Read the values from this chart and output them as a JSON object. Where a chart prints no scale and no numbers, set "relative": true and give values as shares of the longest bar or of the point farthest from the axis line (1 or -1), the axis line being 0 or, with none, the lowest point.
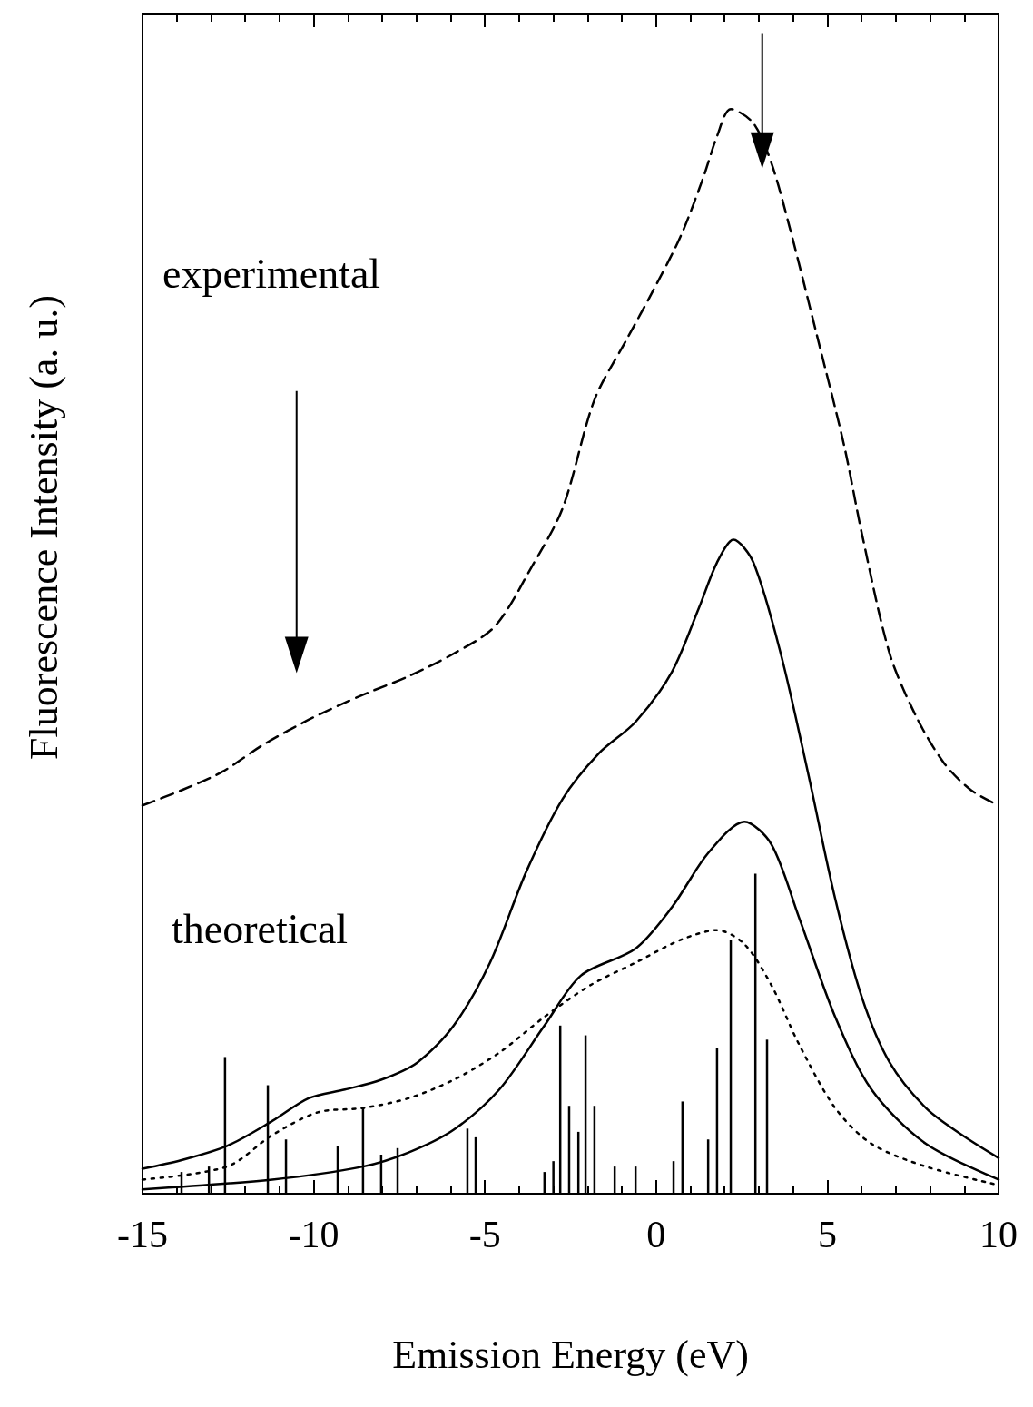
{
  "chart_data": {
    "type": "line",
    "xlabel": "Emission Energy (eV)",
    "ylabel": "Fluorescence Intensity (a. u.)",
    "relative": true,
    "xlim": [
      -15,
      10
    ],
    "xticks": [
      -15,
      -10,
      -5,
      0,
      5,
      10
    ],
    "grid": false,
    "marker": "none",
    "annotations": [
      "experimental",
      "theoretical"
    ],
    "series": [
      {
        "color": "#000000",
        "line_style": "dashed",
        "x": [
          -15,
          -13.86,
          -12.67,
          -11.47,
          -10.02,
          -8.56,
          -7.23,
          -5.91,
          -4.71,
          -3.65,
          -2.73,
          -1.8,
          -0.87,
          -0.08,
          0.72,
          1.38,
          1.78,
          2.18,
          2.84,
          3.37,
          3.9,
          4.7,
          5.49,
          6.02,
          6.82,
          7.61,
          8.41,
          9.2,
          10
        ],
        "values": [
          0.358,
          0.372,
          0.389,
          0.414,
          0.439,
          0.46,
          0.477,
          0.498,
          0.523,
          0.577,
          0.632,
          0.732,
          0.787,
          0.833,
          0.883,
          0.937,
          0.975,
          1.0,
          0.987,
          0.95,
          0.891,
          0.791,
          0.69,
          0.607,
          0.498,
          0.439,
          0.397,
          0.372,
          0.358
        ]
      },
      {
        "color": "#000000",
        "line_style": "solid",
        "x": [
          -15,
          -13.86,
          -12.53,
          -11.21,
          -10.15,
          -9.09,
          -8.03,
          -6.97,
          -5.91,
          -4.85,
          -3.79,
          -2.73,
          -1.67,
          -0.6,
          0.46,
          1.25,
          1.78,
          2.26,
          2.84,
          3.64,
          4.43,
          5.23,
          6.02,
          6.82,
          7.88,
          8.94,
          10
        ],
        "values": [
          0.023,
          0.031,
          0.044,
          0.067,
          0.088,
          0.096,
          0.105,
          0.121,
          0.155,
          0.213,
          0.297,
          0.364,
          0.406,
          0.435,
          0.481,
          0.54,
          0.582,
          0.603,
          0.582,
          0.498,
          0.389,
          0.272,
          0.18,
          0.121,
          0.079,
          0.054,
          0.033
        ]
      },
      {
        "color": "#000000",
        "line_style": "dotted",
        "x": [
          -15,
          -12.53,
          -11.21,
          -9.88,
          -8.56,
          -7.23,
          -5.91,
          -4.58,
          -3.26,
          -1.93,
          -0.6,
          0.72,
          1.78,
          2.58,
          3.37,
          4.17,
          5.23,
          6.29,
          7.88,
          10
        ],
        "values": [
          0.013,
          0.025,
          0.054,
          0.075,
          0.079,
          0.088,
          0.105,
          0.13,
          0.163,
          0.192,
          0.213,
          0.234,
          0.243,
          0.23,
          0.192,
          0.138,
          0.079,
          0.046,
          0.025,
          0.008
        ]
      },
      {
        "color": "#000000",
        "line_style": "solid",
        "x": [
          -15,
          -11.21,
          -8.56,
          -7.23,
          -5.91,
          -4.58,
          -3.26,
          -2.2,
          -0.6,
          0.46,
          1.52,
          2.58,
          3.37,
          4.17,
          5.23,
          6.29,
          7.88,
          10
        ],
        "values": [
          0.004,
          0.013,
          0.025,
          0.038,
          0.059,
          0.096,
          0.155,
          0.201,
          0.226,
          0.264,
          0.314,
          0.343,
          0.322,
          0.255,
          0.163,
          0.096,
          0.046,
          0.013
        ]
      },
      {
        "type": "bar",
        "color": "#000000",
        "x": [
          -13.86,
          -13.06,
          -12.59,
          -11.34,
          -10.81,
          -9.3,
          -8.56,
          -8.03,
          -7.55,
          -5.51,
          -5.27,
          -3.26,
          -3.0,
          -2.8,
          -2.54,
          -2.27,
          -2.06,
          -1.8,
          -1.21,
          -0.6,
          0.51,
          0.77,
          1.52,
          1.78,
          2.18,
          2.9,
          3.24
        ],
        "values": [
          0.02,
          0.025,
          0.126,
          0.1,
          0.05,
          0.044,
          0.079,
          0.036,
          0.042,
          0.06,
          0.052,
          0.02,
          0.03,
          0.155,
          0.081,
          0.057,
          0.146,
          0.081,
          0.025,
          0.025,
          0.03,
          0.085,
          0.05,
          0.134,
          0.234,
          0.295,
          0.142
        ]
      }
    ]
  }
}
